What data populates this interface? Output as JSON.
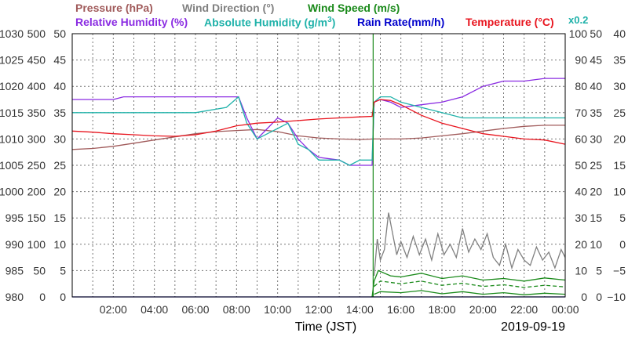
{
  "legend": {
    "pressure": "Pressure (hPa)",
    "wind_direction": "Wind Direction (°)",
    "wind_speed": "Wind Speed (m/s)",
    "relative_humidity": "Relative Humidity (%)",
    "absolute_humidity_main": "Absolute Humidity (g/m",
    "absolute_humidity_sup": "3",
    "absolute_humidity_close": ")",
    "rain_rate": "Rain Rate(mm/h)",
    "temperature": "Temperature (°C)",
    "scale_note": "x0.2"
  },
  "colors": {
    "pressure": "#a05a5a",
    "wind_direction": "#808080",
    "wind_speed": "#1a8a1a",
    "relative_humidity": "#8a2be2",
    "absolute_humidity": "#20b2aa",
    "rain_rate": "#0000cc",
    "temperature": "#e8141e",
    "grid": "#777777"
  },
  "chart_data": {
    "type": "line",
    "title": "",
    "xlabel": "Time (JST)",
    "date": "2019-09-19",
    "x_ticks": [
      "02:00",
      "04:00",
      "06:00",
      "08:00",
      "10:00",
      "12:00",
      "14:00",
      "16:00",
      "18:00",
      "20:00",
      "22:00",
      "00:00"
    ],
    "xlim": [
      0,
      24
    ],
    "axes": {
      "pressure": {
        "range": [
          980,
          1030
        ],
        "ticks": [
          "980",
          "985",
          "990",
          "995",
          "1000",
          "1005",
          "1010",
          "1015",
          "1020",
          "1025",
          "1030"
        ]
      },
      "wind_direction": {
        "range": [
          0,
          500
        ],
        "ticks": [
          "0",
          "50",
          "100",
          "150",
          "200",
          "250",
          "300",
          "350",
          "400",
          "450",
          "500"
        ]
      },
      "wind_speed": {
        "range": [
          0,
          50
        ],
        "ticks": [
          "0",
          "5",
          "10",
          "15",
          "20",
          "25",
          "30",
          "35",
          "40",
          "45",
          "50"
        ]
      },
      "relative_humidity": {
        "range": [
          0,
          100
        ],
        "ticks": [
          "0",
          "10",
          "20",
          "30",
          "40",
          "50",
          "60",
          "70",
          "80",
          "90",
          "100"
        ]
      },
      "rain_rate": {
        "range": [
          0,
          50
        ],
        "ticks": [
          "0",
          "5",
          "10",
          "15",
          "20",
          "25",
          "30",
          "35",
          "40",
          "45",
          "50"
        ]
      },
      "temperature": {
        "range": [
          -10,
          40
        ],
        "ticks": [
          "−10",
          "−5",
          "0",
          "5",
          "10",
          "15",
          "20",
          "25",
          "30",
          "35",
          "40"
        ]
      }
    },
    "series": [
      {
        "name": "Pressure (hPa)",
        "axis": "pressure",
        "x": [
          0,
          1,
          2,
          3,
          4,
          5,
          6,
          7,
          8,
          9,
          10,
          11,
          12,
          13,
          14,
          14.7,
          15,
          16,
          17,
          18,
          19,
          20,
          21,
          22,
          23,
          24
        ],
        "y": [
          1008.0,
          1008.2,
          1008.6,
          1009.2,
          1009.8,
          1010.4,
          1011.0,
          1011.4,
          1011.6,
          1011.8,
          1011.4,
          1010.6,
          1010.2,
          1010.0,
          1009.9,
          1010.0,
          1010.0,
          1010.0,
          1010.2,
          1010.6,
          1011.0,
          1011.5,
          1012.0,
          1012.4,
          1012.6,
          1012.6
        ]
      },
      {
        "name": "Wind Direction (°)",
        "axis": "wind_direction",
        "x": [
          14.7,
          14.85,
          15.0,
          15.2,
          15.4,
          15.6,
          15.8,
          16.0,
          16.3,
          16.6,
          16.9,
          17.2,
          17.5,
          17.8,
          18.1,
          18.4,
          18.7,
          19.0,
          19.3,
          19.6,
          19.9,
          20.2,
          20.5,
          20.8,
          21.1,
          21.4,
          21.7,
          22.0,
          22.3,
          22.6,
          22.9,
          23.2,
          23.5,
          23.8,
          24.0
        ],
        "y": [
          40,
          110,
          70,
          90,
          160,
          120,
          80,
          105,
          75,
          115,
          80,
          110,
          70,
          120,
          80,
          100,
          75,
          130,
          85,
          110,
          90,
          120,
          75,
          60,
          100,
          55,
          90,
          70,
          60,
          95,
          70,
          85,
          55,
          90,
          75
        ]
      },
      {
        "name": "Wind Speed (m/s)",
        "axis": "wind_speed",
        "x": [
          14.6,
          14.7,
          14.9,
          15.5,
          16,
          17,
          18,
          19,
          20,
          21,
          22,
          23,
          24
        ],
        "y": [
          0,
          3,
          5,
          4,
          3.8,
          4.5,
          3.5,
          4,
          3.2,
          3.5,
          3,
          3.6,
          3.2
        ]
      },
      {
        "name": "Wind Speed (m/s) dashed",
        "axis": "wind_speed",
        "x": [
          14.7,
          15,
          16,
          17,
          18,
          19,
          20,
          21,
          22,
          23,
          24
        ],
        "y": [
          2,
          3,
          2.5,
          3,
          2.2,
          2.6,
          2,
          2.3,
          1.8,
          2.2,
          1.9
        ]
      },
      {
        "name": "Wind Speed (m/s) low",
        "axis": "wind_speed",
        "x": [
          14.7,
          15,
          16,
          17,
          18,
          19,
          20,
          21,
          22,
          23,
          24
        ],
        "y": [
          0.5,
          1,
          0.8,
          1.2,
          0.6,
          1,
          0.5,
          0.8,
          0.4,
          0.7,
          0.5
        ]
      },
      {
        "name": "Relative Humidity (%)",
        "axis": "relative_humidity",
        "x": [
          0,
          2,
          2.5,
          4,
          6,
          7.5,
          8.1,
          8.5,
          9,
          9.5,
          10,
          10.5,
          11,
          11.5,
          12,
          13,
          13.5,
          14,
          14.6,
          14.7,
          15,
          15.5,
          16,
          17,
          18,
          19,
          20,
          21,
          22,
          23,
          24
        ],
        "y": [
          75,
          75,
          76,
          76,
          76,
          76,
          76,
          68,
          60,
          64,
          68,
          66,
          60,
          56,
          53,
          52,
          50,
          50,
          50,
          74,
          75,
          74,
          72,
          73,
          74,
          76,
          80,
          82,
          82,
          83,
          83
        ]
      },
      {
        "name": "Absolute Humidity (g/m3)",
        "axis": "wind_speed",
        "x": [
          0,
          1,
          2,
          4,
          6,
          7.5,
          8.1,
          8.5,
          9,
          9.5,
          10,
          10.5,
          11,
          11.5,
          12,
          13,
          13.5,
          14,
          14.6,
          14.7,
          15,
          15.5,
          16,
          17,
          18,
          19,
          20,
          21,
          22,
          23,
          24
        ],
        "y": [
          35,
          35,
          35,
          35,
          35,
          36,
          38,
          33,
          30,
          31,
          32,
          33,
          29,
          28,
          26,
          26,
          25,
          26,
          26,
          37,
          38,
          38,
          37,
          36,
          35,
          34,
          34,
          34,
          34,
          34,
          34
        ]
      },
      {
        "name": "Rain Rate(mm/h)",
        "axis": "rain_rate",
        "x": [
          0,
          24
        ],
        "y": [
          0,
          0
        ]
      },
      {
        "name": "Temperature (°C)",
        "axis": "temperature",
        "x": [
          0,
          1,
          2,
          3,
          4,
          5,
          6,
          7,
          8,
          9,
          10,
          11,
          12,
          13,
          14,
          14.6,
          14.7,
          15,
          15.5,
          16,
          17,
          18,
          19,
          20,
          21,
          22,
          23,
          24
        ],
        "y": [
          21.5,
          21.3,
          21.0,
          20.8,
          20.6,
          20.5,
          20.8,
          21.5,
          22.5,
          23.0,
          23.2,
          23.5,
          23.8,
          24.0,
          24.2,
          24.3,
          27.0,
          27.5,
          27.3,
          26.5,
          24.5,
          23.0,
          22.0,
          21.0,
          20.5,
          20.0,
          19.8,
          19.0
        ]
      }
    ],
    "grid": true,
    "legend_position": "top"
  }
}
